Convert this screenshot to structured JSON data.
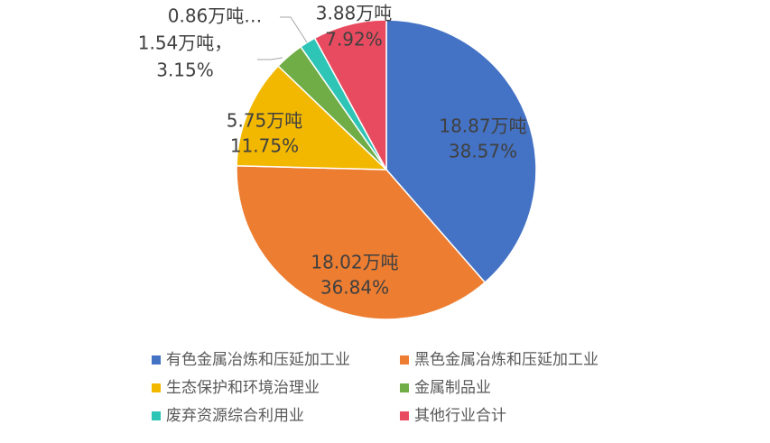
{
  "chart_data": {
    "type": "pie",
    "categories": [
      "有色金属冶炼和压延加工业",
      "黑色金属冶炼和压延加工业",
      "生态保护和环境治理业",
      "金属制品业",
      "废弃资源综合利用业",
      "其他行业合计"
    ],
    "values": [
      18.87,
      18.02,
      5.75,
      1.54,
      0.86,
      3.88
    ],
    "value_labels": [
      "18.87万吨",
      "18.02万吨",
      "5.75万吨",
      "1.54万吨，",
      "0.86万吨…",
      "3.88万吨"
    ],
    "percents": [
      38.57,
      36.84,
      11.75,
      3.15,
      null,
      7.92
    ],
    "percent_labels": [
      "38.57%",
      "36.84%",
      "11.75%",
      "3.15%",
      null,
      "7.92%"
    ],
    "colors": [
      "#4472c4",
      "#ed7d31",
      "#f2b800",
      "#70ad47",
      "#2ec4b6",
      "#e84b5f"
    ],
    "legend": "bottom"
  }
}
